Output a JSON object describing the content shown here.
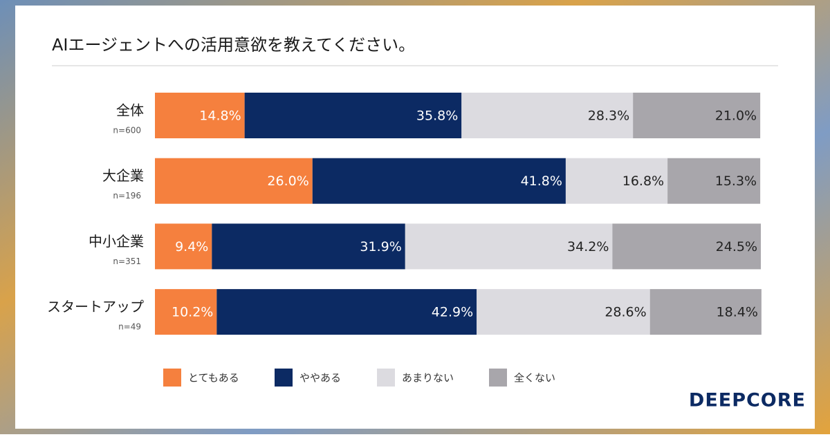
{
  "chart_data": {
    "type": "stacked_bar_horizontal",
    "title": "AIエージェントへの活用意欲を教えてください。",
    "categories": [
      "全体",
      "大企業",
      "中小企業",
      "スタートアップ"
    ],
    "sample_sizes": [
      "n=600",
      "n=196",
      "n=351",
      "n=49"
    ],
    "xlim": [
      0,
      100
    ],
    "series": [
      {
        "name": "とてもある",
        "color": "#f5803e",
        "label_color": "#ffffff",
        "values": [
          14.8,
          26.0,
          9.4,
          10.2
        ],
        "value_labels": [
          "14.8%",
          "26.0%",
          "9.4%",
          "10.2%"
        ]
      },
      {
        "name": "ややある",
        "color": "#0c2a63",
        "label_color": "#ffffff",
        "values": [
          35.8,
          41.8,
          31.9,
          42.9
        ],
        "value_labels": [
          "35.8%",
          "41.8%",
          "31.9%",
          "42.9%"
        ]
      },
      {
        "name": "あまりない",
        "color": "#dcdbe0",
        "label_color": "#222222",
        "values": [
          28.3,
          16.8,
          34.2,
          28.6
        ],
        "value_labels": [
          "28.3%",
          "16.8%",
          "34.2%",
          "28.6%"
        ]
      },
      {
        "name": "全くない",
        "color": "#a8a6ab",
        "label_color": "#222222",
        "values": [
          21.0,
          15.3,
          24.5,
          18.4
        ],
        "value_labels": [
          "21.0%",
          "15.3%",
          "24.5%",
          "18.4%"
        ]
      }
    ],
    "logo": "DEEPCORE"
  }
}
